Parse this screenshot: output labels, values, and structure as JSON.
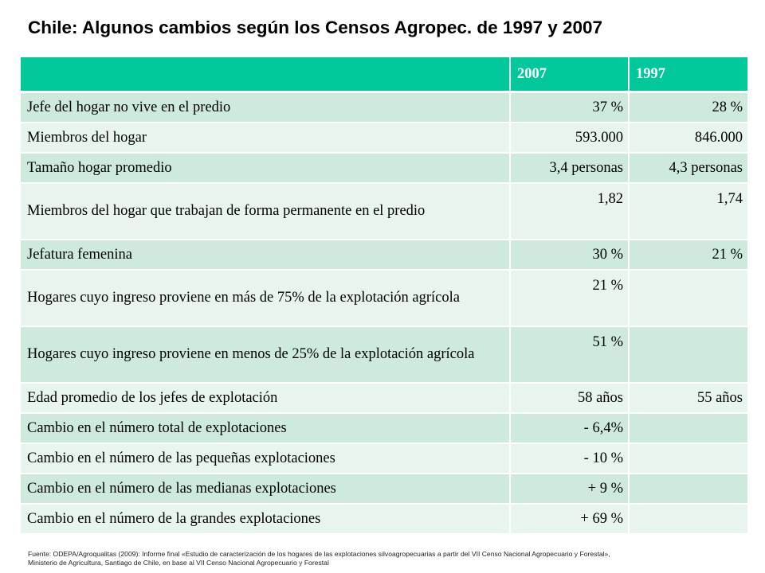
{
  "title": "Chile: Algunos cambios según los Censos Agropec. de 1997 y 2007",
  "table": {
    "headers": [
      "",
      "2007",
      "1997"
    ],
    "rows": [
      {
        "label": "Jefe del hogar no vive en el predio",
        "v2007": "37 %",
        "v1997": "28 %"
      },
      {
        "label": "Miembros del hogar",
        "v2007": "593.000",
        "v1997": "846.000"
      },
      {
        "label": "Tamaño hogar promedio",
        "v2007": "3,4 personas",
        "v1997": "4,3 personas"
      },
      {
        "label": "Miembros del hogar que trabajan de forma permanente en el predio",
        "v2007": "1,82",
        "v1997": "1,74"
      },
      {
        "label": "Jefatura femenina",
        "v2007": "30 %",
        "v1997": "21 %"
      },
      {
        "label": "Hogares cuyo ingreso proviene en más de 75% de la explotación agrícola",
        "v2007": "21 %",
        "v1997": ""
      },
      {
        "label": "Hogares cuyo ingreso proviene en menos de 25% de la explotación agrícola",
        "v2007": "51 %",
        "v1997": ""
      },
      {
        "label": "Edad promedio de los jefes de explotación",
        "v2007": "58 años",
        "v1997": "55 años"
      },
      {
        "label": "Cambio en el número total de explotaciones",
        "v2007": "- 6,4%",
        "v1997": ""
      },
      {
        "label": "Cambio en el número de las pequeñas explotaciones",
        "v2007": "- 10 %",
        "v1997": ""
      },
      {
        "label": "Cambio en el número de las medianas explotaciones",
        "v2007": "+ 9 %",
        "v1997": ""
      },
      {
        "label": "Cambio en el número de la grandes explotaciones",
        "v2007": "+ 69 %",
        "v1997": ""
      }
    ]
  },
  "footnote": {
    "line1": "Fuente: ODEPA/Agroqualitas (2009): Informe final «Estudio de caracterización de los hogares de las explotaciones silvoagropecuarias a partir del VII Censo Nacional Agropecuario y Forestal»,",
    "line2": "Ministerio de Agricultura, Santiago de Chile, en base al VII Censo Nacional Agropecuario y Forestal"
  },
  "colors": {
    "header": "#00c89a",
    "row_odd": "#cdeadd",
    "row_even": "#e8f5ee"
  }
}
